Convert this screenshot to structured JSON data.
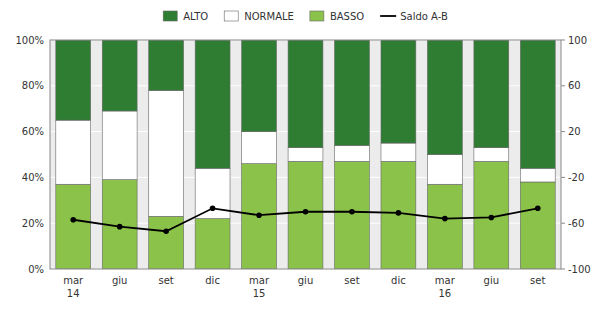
{
  "chart_data": {
    "type": "bar",
    "stacked": true,
    "categories": [
      "mar\n14",
      "giu",
      "set",
      "dic",
      "mar\n15",
      "giu",
      "set",
      "dic",
      "mar\n16",
      "giu",
      "set"
    ],
    "series": [
      {
        "name": "ALTO",
        "type": "bar",
        "color": "#2e7d32",
        "values": [
          35,
          31,
          22,
          56,
          40,
          47,
          46,
          45,
          50,
          47,
          56
        ]
      },
      {
        "name": "NORMALE",
        "type": "bar",
        "color": "#ffffff",
        "values": [
          28,
          30,
          55,
          22,
          14,
          6,
          7,
          8,
          13,
          6,
          6
        ]
      },
      {
        "name": "BASSO",
        "type": "bar",
        "color": "#8bc34a",
        "values": [
          37,
          39,
          23,
          22,
          46,
          47,
          47,
          47,
          37,
          47,
          38
        ]
      },
      {
        "name": "Saldo A-B",
        "type": "line",
        "axis": "y2",
        "marker": "circle",
        "color": "#000000",
        "values": [
          -57,
          -63,
          -67,
          -47,
          -53,
          -50,
          -50,
          -51,
          -56,
          -55,
          -47
        ]
      }
    ],
    "ylim": [
      0,
      100
    ],
    "yticks": [
      {
        "value": 0,
        "label": "0%"
      },
      {
        "value": 20,
        "label": "20%"
      },
      {
        "value": 40,
        "label": "40%"
      },
      {
        "value": 60,
        "label": "60%"
      },
      {
        "value": 80,
        "label": "80%"
      },
      {
        "value": 100,
        "label": "100%"
      }
    ],
    "y2lim": [
      -100,
      100
    ],
    "y2ticks": [
      -100,
      -60,
      -20,
      20,
      60,
      100
    ],
    "grid": true,
    "legend": "top"
  }
}
